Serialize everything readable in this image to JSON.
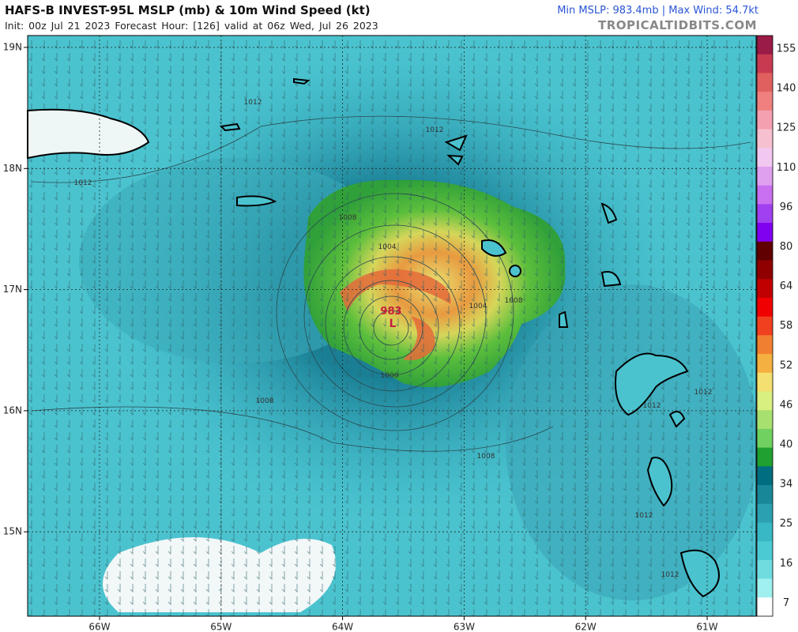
{
  "header": {
    "title": "HAFS-B INVEST-95L MSLP (mb) & 10m Wind Speed (kt)",
    "init": "Init: 00z Jul 21 2023   Forecast Hour: [126]   valid at 06z Wed, Jul 26 2023",
    "stats": "Min MSLP: 983.4mb | Max Wind: 54.7kt",
    "site": "TROPICALTIDBITS.COM"
  },
  "map": {
    "latitudes": [
      "19N",
      "18N",
      "17N",
      "16N",
      "15N"
    ],
    "longitudes": [
      "66W",
      "65W",
      "64W",
      "63W",
      "62W",
      "61W"
    ],
    "contour_labels": [
      "1012",
      "1012",
      "1012",
      "1008",
      "1004",
      "1004",
      "1008",
      "1000",
      "1008",
      "1008",
      "1012",
      "1012",
      "1012",
      "1012"
    ],
    "low_pressure": "983",
    "low_marker": "L"
  },
  "colorbar": {
    "labels": [
      "155",
      "140",
      "125",
      "110",
      "96",
      "80",
      "64",
      "58",
      "52",
      "46",
      "40",
      "34",
      "25",
      "16",
      "7"
    ]
  }
}
